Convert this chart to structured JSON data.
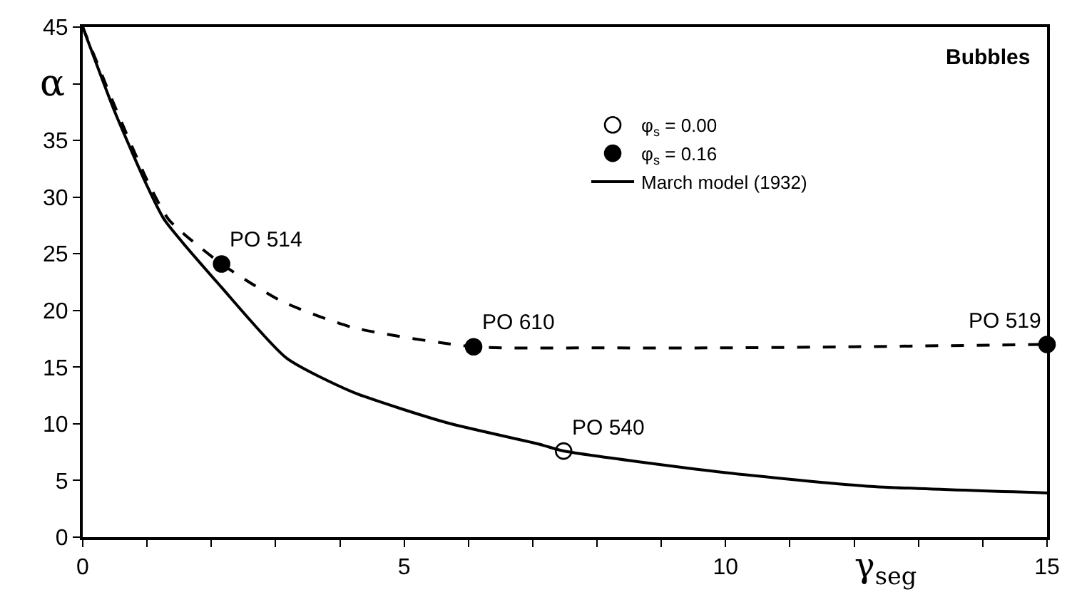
{
  "chart_data": {
    "type": "line",
    "xlabel": "γ$_{seg}$",
    "ylabel": "α",
    "xlim": [
      0,
      15
    ],
    "ylim": [
      0,
      45
    ],
    "xticks": [
      0,
      {
        "value": 1,
        "label": null
      },
      {
        "value": 2,
        "label": null
      },
      {
        "value": 3,
        "label": null
      },
      {
        "value": 4,
        "label": null
      },
      5,
      {
        "value": 6,
        "label": null
      },
      {
        "value": 7,
        "label": null
      },
      {
        "value": 8,
        "label": null
      },
      {
        "value": 9,
        "label": null
      },
      10,
      {
        "value": 11,
        "label": null
      },
      {
        "value": 12,
        "label": null
      },
      {
        "value": 13,
        "label": null
      },
      {
        "value": 14,
        "label": null
      },
      15
    ],
    "yticks": [
      0,
      5,
      10,
      15,
      20,
      25,
      30,
      35,
      {
        "value": 40,
        "label": null
      },
      45
    ],
    "legend": "top right",
    "series": [
      {
        "name": "φ$_{s}$ = 0.00",
        "type": "scatter",
        "marker": "circle",
        "color": "#ffffff",
        "x": [
          7.48
        ],
        "values": [
          7.6
        ]
      },
      {
        "name": "φ$_{s}$ = 0.16",
        "type": "scatter",
        "marker": "circle",
        "color": "#000000",
        "x": [
          2.16,
          6.08,
          15
        ],
        "values": [
          24.1,
          16.8,
          17.0
        ]
      },
      {
        "name": "March model (1932)",
        "line_style": "solid",
        "color": "#000000",
        "x": [
          0,
          0.5,
          1,
          1.27,
          2.15,
          3.17,
          4.2,
          5.66,
          7.1,
          7.48,
          9.98,
          12.2,
          15
        ],
        "values": [
          45,
          37.5,
          31,
          28,
          22.1,
          15.8,
          12.8,
          10.1,
          8.2,
          7.6,
          5.7,
          4.5,
          3.9
        ]
      },
      {
        "line_style": "dashed",
        "color": "#000000",
        "x": [
          0,
          0.5,
          1,
          1.34,
          2.16,
          3.1,
          4.2,
          6.08,
          8,
          10,
          12,
          15
        ],
        "values": [
          45,
          38,
          31.5,
          28,
          24.1,
          20.8,
          18.5,
          16.8,
          16.7,
          16.7,
          16.8,
          17.0
        ]
      }
    ],
    "annotations": [
      "Bubbles",
      {
        "text": "PO 514",
        "x": 2.16,
        "y": 24.1
      },
      {
        "text": "PO 610",
        "x": 6.08,
        "y": 16.8
      },
      {
        "text": "PO 519",
        "x": 15,
        "y": 17.0
      },
      {
        "text": "PO 540",
        "x": 7.48,
        "y": 7.6
      }
    ]
  }
}
